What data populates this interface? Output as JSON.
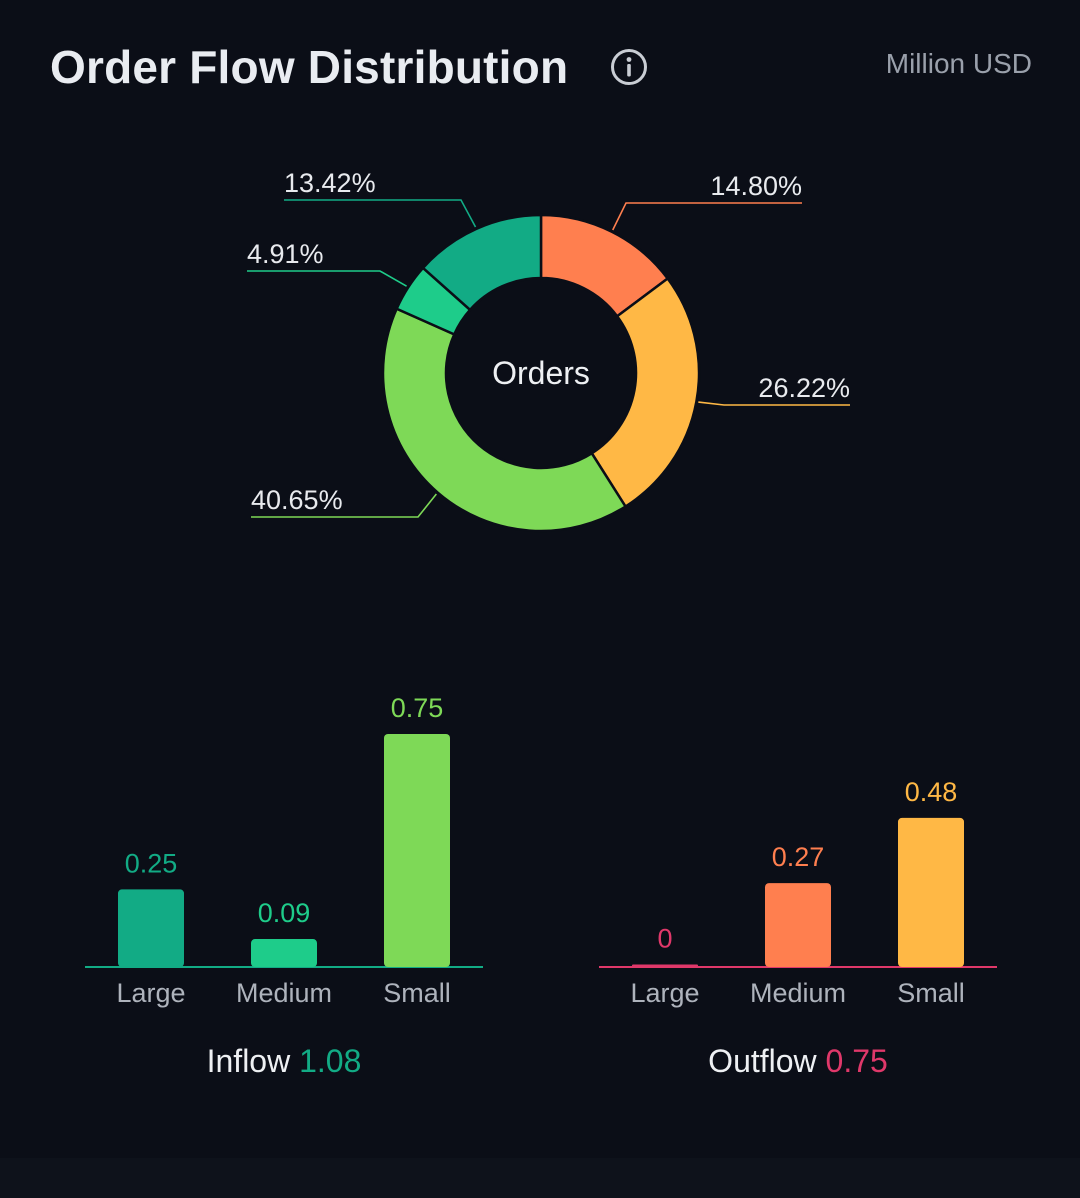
{
  "header": {
    "title": "Order Flow Distribution",
    "info_icon": "info-circle-icon",
    "unit": "Million USD"
  },
  "chart_data": [
    {
      "type": "pie",
      "center_label": "Orders",
      "slices": [
        {
          "label": "14.80%",
          "value": 14.8,
          "color": "#ff7f4f"
        },
        {
          "label": "26.22%",
          "value": 26.22,
          "color": "#ffb845"
        },
        {
          "label": "40.65%",
          "value": 40.65,
          "color": "#7ed957"
        },
        {
          "label": "4.91%",
          "value": 4.91,
          "color": "#1ecc8a"
        },
        {
          "label": "13.42%",
          "value": 13.42,
          "color": "#12ab85"
        }
      ]
    },
    {
      "type": "bar",
      "categories": [
        "Large",
        "Medium",
        "Small"
      ],
      "values": [
        0.25,
        0.09,
        0.75
      ],
      "value_labels": [
        "0.25",
        "0.09",
        "0.75"
      ],
      "colors": [
        "#12ab85",
        "#1ecc8a",
        "#7ed957"
      ],
      "axis_color": "#12ab85",
      "ylim": [
        0,
        0.75
      ],
      "summary_label": "Inflow",
      "summary_value": "1.08",
      "summary_color": "#12ab85"
    },
    {
      "type": "bar",
      "categories": [
        "Large",
        "Medium",
        "Small"
      ],
      "values": [
        0,
        0.27,
        0.48
      ],
      "value_labels": [
        "0",
        "0.27",
        "0.48"
      ],
      "colors": [
        "#e0386a",
        "#ff7f4f",
        "#ffb845"
      ],
      "axis_color": "#e0386a",
      "ylim": [
        0,
        0.75
      ],
      "summary_label": "Outflow",
      "summary_value": "0.75",
      "summary_color": "#e0386a"
    }
  ]
}
